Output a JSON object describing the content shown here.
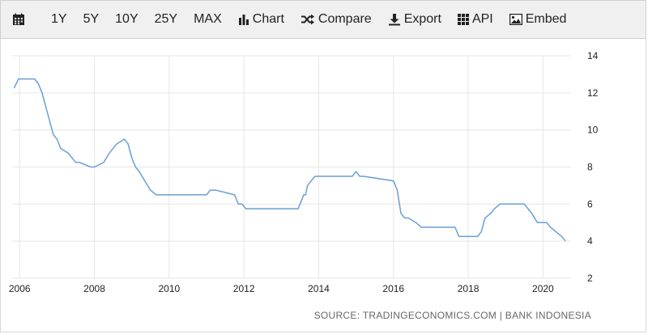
{
  "toolbar": {
    "ranges": [
      "1Y",
      "5Y",
      "10Y",
      "25Y",
      "MAX"
    ],
    "chart_label": "Chart",
    "compare_label": "Compare",
    "export_label": "Export",
    "api_label": "API",
    "embed_label": "Embed"
  },
  "source": "SOURCE: TRADINGECONOMICS.COM | BANK INDONESIA",
  "colors": {
    "line": "#6a9fd4",
    "grid": "#e6e6e6",
    "toolbar_bg": "#f0f0f0"
  },
  "chart_data": {
    "type": "line",
    "title": "",
    "xlabel": "",
    "ylabel": "",
    "xlim": [
      2005.8,
      2020.75
    ],
    "ylim": [
      2,
      14
    ],
    "x_ticks": [
      2006,
      2008,
      2010,
      2012,
      2014,
      2016,
      2018,
      2020
    ],
    "y_ticks": [
      2,
      4,
      6,
      8,
      10,
      12,
      14
    ],
    "grid": true,
    "y_axis_position": "right",
    "series": [
      {
        "x": [
          2005.85,
          2005.97,
          2006.4,
          2006.5,
          2006.6,
          2006.7,
          2006.8,
          2006.9,
          2007.0,
          2007.1,
          2007.3,
          2007.4,
          2007.5,
          2007.6,
          2007.9,
          2008.0,
          2008.25,
          2008.4,
          2008.6,
          2008.8,
          2008.9,
          2009.0,
          2009.1,
          2009.2,
          2009.35,
          2009.5,
          2009.65,
          2010.0,
          2011.0,
          2011.1,
          2011.25,
          2011.75,
          2011.85,
          2011.95,
          2012.05,
          2012.15,
          2013.45,
          2013.5,
          2013.6,
          2013.65,
          2013.7,
          2013.8,
          2013.9,
          2014.0,
          2014.9,
          2015.0,
          2015.1,
          2015.2,
          2016.0,
          2016.1,
          2016.2,
          2016.3,
          2016.4,
          2016.6,
          2016.75,
          2017.65,
          2017.75,
          2018.25,
          2018.35,
          2018.45,
          2018.6,
          2018.7,
          2018.85,
          2019.5,
          2019.6,
          2019.7,
          2019.85,
          2020.1,
          2020.2,
          2020.35,
          2020.5,
          2020.6
        ],
        "y": [
          12.25,
          12.75,
          12.75,
          12.5,
          12.0,
          11.25,
          10.5,
          9.75,
          9.5,
          9.0,
          8.75,
          8.5,
          8.25,
          8.25,
          8.0,
          8.0,
          8.25,
          8.75,
          9.25,
          9.5,
          9.25,
          8.5,
          8.0,
          7.75,
          7.25,
          6.75,
          6.5,
          6.5,
          6.5,
          6.75,
          6.75,
          6.5,
          6.0,
          6.0,
          5.75,
          5.75,
          5.75,
          6.0,
          6.5,
          6.5,
          7.0,
          7.25,
          7.5,
          7.5,
          7.5,
          7.75,
          7.5,
          7.5,
          7.25,
          6.75,
          5.5,
          5.25,
          5.25,
          5.0,
          4.75,
          4.75,
          4.25,
          4.25,
          4.5,
          5.25,
          5.5,
          5.75,
          6.0,
          6.0,
          5.75,
          5.5,
          5.0,
          5.0,
          4.75,
          4.5,
          4.25,
          4.0
        ]
      }
    ]
  }
}
